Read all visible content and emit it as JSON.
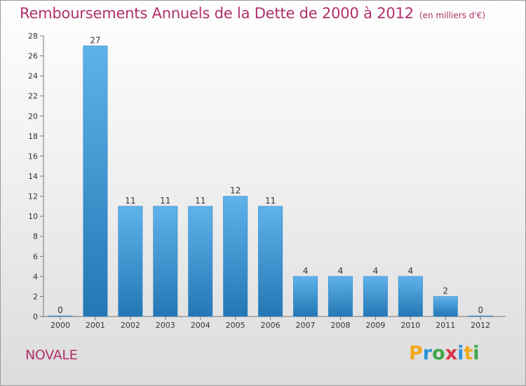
{
  "chart_data": {
    "type": "bar",
    "title": "Remboursements Annuels de la Dette de 2000 à 2012",
    "subtitle": "(en milliers d'€)",
    "categories": [
      "2000",
      "2001",
      "2002",
      "2003",
      "2004",
      "2005",
      "2006",
      "2007",
      "2008",
      "2009",
      "2010",
      "2011",
      "2012"
    ],
    "values": [
      0,
      27,
      11,
      11,
      11,
      12,
      11,
      4,
      4,
      4,
      4,
      2,
      0
    ],
    "ylim": [
      0,
      28
    ],
    "yticks": [
      0,
      2,
      4,
      6,
      8,
      10,
      12,
      14,
      16,
      18,
      20,
      22,
      24,
      26,
      28
    ],
    "xlabel": "",
    "ylabel": "",
    "grid": false
  },
  "commune": "NOVALE",
  "logo": {
    "letters": [
      "P",
      "r",
      "o",
      "x",
      "i",
      "t",
      "i"
    ]
  },
  "colors": {
    "bar_top": "#5fb2ea",
    "bar_bottom": "#2577b4",
    "title": "#b0306c"
  }
}
